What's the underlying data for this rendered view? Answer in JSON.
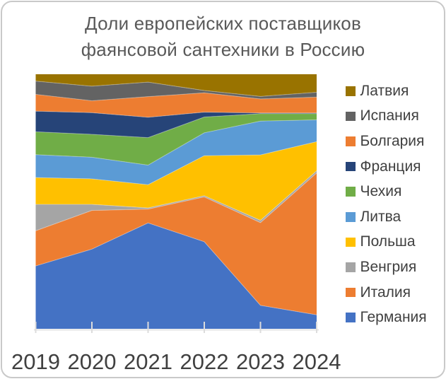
{
  "title": {
    "line1": "Доли европейских поставщиков",
    "line2": "фаянсовой сантехники в Россию"
  },
  "chart_data": {
    "type": "area",
    "stacking": "percent",
    "unit": "%",
    "grid": false,
    "legend_position": "right",
    "xlabel": "",
    "ylabel": "",
    "ylim": [
      0,
      100
    ],
    "categories": [
      "2019",
      "2020",
      "2021",
      "2022",
      "2023",
      "2024"
    ],
    "series": [
      {
        "key": "latvia",
        "name": "Латвия",
        "color": "#997300",
        "values": [
          2.7,
          4.7,
          3.1,
          6.4,
          8.7,
          7.1
        ]
      },
      {
        "key": "spain",
        "name": "Испания",
        "color": "#636363",
        "values": [
          5.2,
          5.7,
          5.7,
          0.9,
          1.0,
          1.9
        ]
      },
      {
        "key": "bulgaria",
        "name": "Болгария",
        "color": "#ED7D31",
        "values": [
          6.6,
          4.7,
          8.1,
          7.6,
          5.5,
          6.2
        ]
      },
      {
        "key": "france",
        "name": "Франция",
        "color": "#264478",
        "values": [
          8.1,
          8.5,
          8.0,
          1.9,
          0.3,
          0.3
        ]
      },
      {
        "key": "czechia",
        "name": "Чехия",
        "color": "#70AD47",
        "values": [
          9.0,
          9.0,
          10.8,
          6.2,
          2.9,
          2.4
        ]
      },
      {
        "key": "lithuania",
        "name": "Литва",
        "color": "#5B9BD5",
        "values": [
          9.0,
          8.5,
          7.7,
          9.0,
          13.3,
          8.6
        ]
      },
      {
        "key": "poland",
        "name": "Польша",
        "color": "#FFC000",
        "values": [
          10.5,
          10.0,
          9.1,
          15.7,
          25.7,
          11.4
        ]
      },
      {
        "key": "hungary",
        "name": "Венгрия",
        "color": "#A5A5A5",
        "values": [
          10.4,
          2.4,
          0.5,
          0.5,
          0.9,
          0.9
        ]
      },
      {
        "key": "italy",
        "name": "Италия",
        "color": "#ED7D31",
        "values": [
          13.8,
          15.2,
          5.4,
          17.6,
          32.5,
          55.7
        ]
      },
      {
        "key": "germany",
        "name": "Германия",
        "color": "#4472C4",
        "values": [
          24.7,
          31.3,
          41.6,
          34.2,
          9.2,
          5.5
        ]
      }
    ],
    "stack_order_note": "series listed top-of-stack first; stacked bottom-up in reverse order"
  },
  "axis": {
    "tick_color": "#DCDCDC",
    "axis_line_color": "#E4E4E4",
    "year_label_color": "#404040"
  },
  "colors": {
    "title_text": "#595959",
    "legend_text": "#404040",
    "border": "#C9C9C9",
    "background": "#FFFFFF"
  }
}
